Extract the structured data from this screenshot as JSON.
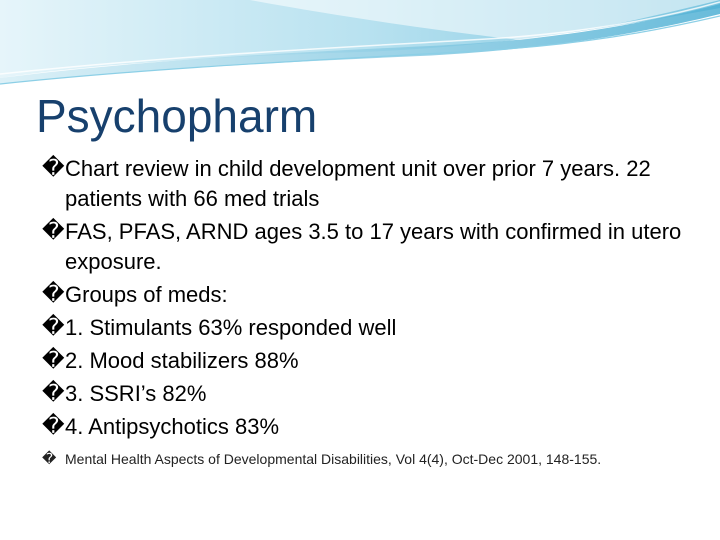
{
  "slide": {
    "title": "Psychopharm",
    "bullet_glyph": "�",
    "bullets": [
      {
        "text": "Chart review in child development unit over prior 7 years.  22 patients with 66 med trials"
      },
      {
        "text": "FAS, PFAS, ARND ages 3.5 to 17 years with confirmed in utero exposure."
      },
      {
        "text": "Groups of meds:"
      },
      {
        "text": "1.  Stimulants 63% responded well"
      },
      {
        "text": "2. Mood stabilizers 88%"
      },
      {
        "text": "3. SSRI’s 82%"
      },
      {
        "text": "4. Antipsychotics 83%"
      }
    ],
    "citation": "Mental Health Aspects of Developmental Disabilities, Vol 4(4), Oct-Dec 2001, 148-155."
  },
  "colors": {
    "title": "#17406d",
    "wave_light": "#cfeaf3",
    "wave_mid": "#9dd4e8",
    "wave_dark": "#5fb8d8"
  },
  "icons": {
    "bullet": "missing-glyph-icon",
    "header_decoration": "wave-decoration"
  }
}
